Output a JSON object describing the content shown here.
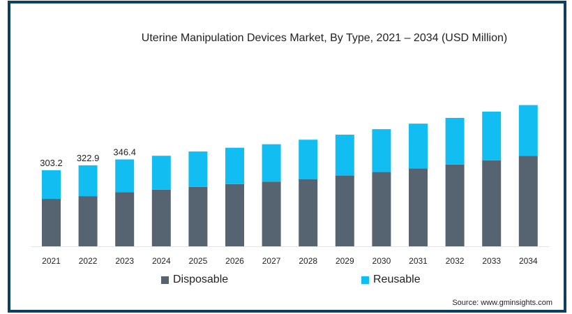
{
  "chart_data": {
    "type": "bar",
    "stacked": true,
    "title": "Uterine Manipulation Devices Market, By Type, 2021 – 2034 (USD Million)",
    "xlabel": "",
    "ylabel": "",
    "ylim": [
      0,
      600
    ],
    "grid": false,
    "legend_position": "bottom",
    "categories": [
      "2021",
      "2022",
      "2023",
      "2024",
      "2025",
      "2026",
      "2027",
      "2028",
      "2029",
      "2030",
      "2031",
      "2032",
      "2033",
      "2034"
    ],
    "series": [
      {
        "name": "Disposable",
        "color": "#566370",
        "values": [
          189,
          200,
          216,
          226,
          237,
          248,
          258,
          268,
          282,
          296,
          310,
          326,
          343,
          361
        ]
      },
      {
        "name": "Reusable",
        "color": "#12bdf2",
        "values": [
          114.2,
          122.9,
          130.4,
          135,
          141,
          145,
          149,
          157,
          163,
          171,
          179,
          186,
          194,
          202
        ]
      }
    ],
    "data_labels": [
      {
        "category": "2021",
        "text": "303.2"
      },
      {
        "category": "2022",
        "text": "322.9"
      },
      {
        "category": "2023",
        "text": "346.4"
      }
    ]
  },
  "source": "Source: www.gminsights.com"
}
